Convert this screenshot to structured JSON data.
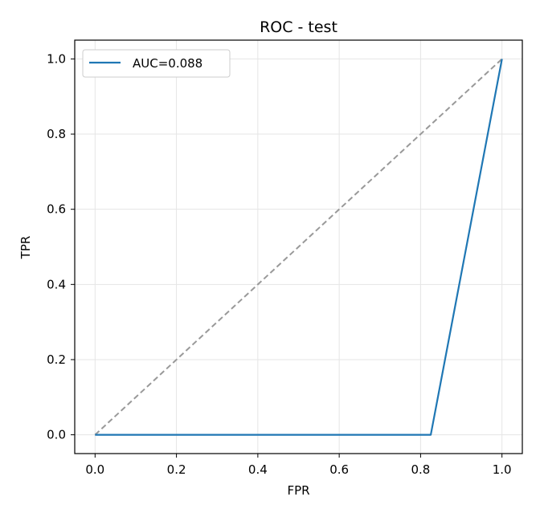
{
  "chart_data": {
    "type": "line",
    "title": "ROC - test",
    "xlabel": "FPR",
    "ylabel": "TPR",
    "xlim": [
      -0.05,
      1.05
    ],
    "ylim": [
      -0.05,
      1.05
    ],
    "xticks": [
      0.0,
      0.2,
      0.4,
      0.6,
      0.8,
      1.0
    ],
    "yticks": [
      0.0,
      0.2,
      0.4,
      0.6,
      0.8,
      1.0
    ],
    "xtick_labels": [
      "0.0",
      "0.2",
      "0.4",
      "0.6",
      "0.8",
      "1.0"
    ],
    "ytick_labels": [
      "0.0",
      "0.2",
      "0.4",
      "0.6",
      "0.8",
      "1.0"
    ],
    "grid": true,
    "legend_position": "upper-left",
    "series": [
      {
        "name": "AUC=0.088",
        "color": "#1f77b4",
        "style": "solid",
        "x": [
          0.0,
          0.825,
          1.0
        ],
        "y": [
          0.0,
          0.0,
          1.0
        ]
      },
      {
        "color": "#999999",
        "style": "dashed",
        "x": [
          0.0,
          1.0
        ],
        "y": [
          0.0,
          1.0
        ]
      }
    ]
  }
}
